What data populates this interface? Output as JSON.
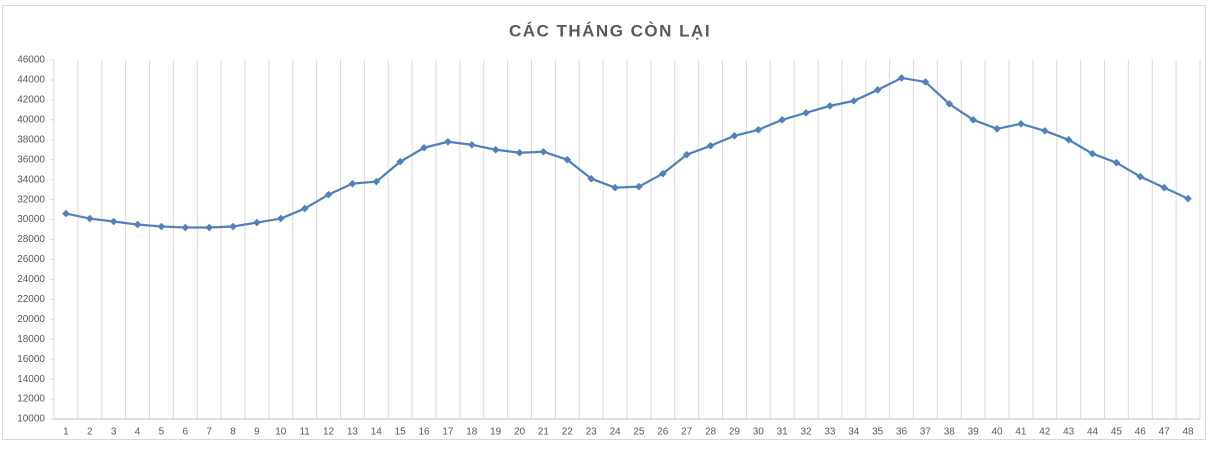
{
  "chart_data": {
    "type": "line",
    "title": "CÁC THÁNG CÒN LẠI",
    "categories": [
      "1",
      "2",
      "3",
      "4",
      "5",
      "6",
      "7",
      "8",
      "9",
      "10",
      "11",
      "12",
      "13",
      "14",
      "15",
      "16",
      "17",
      "18",
      "19",
      "20",
      "21",
      "22",
      "23",
      "24",
      "25",
      "26",
      "27",
      "28",
      "29",
      "30",
      "31",
      "32",
      "33",
      "34",
      "35",
      "36",
      "37",
      "38",
      "39",
      "40",
      "41",
      "42",
      "43",
      "44",
      "45",
      "46",
      "47",
      "48"
    ],
    "values": [
      30600,
      30100,
      29800,
      29500,
      29300,
      29200,
      29200,
      29300,
      29700,
      30100,
      31100,
      32500,
      33600,
      33800,
      35800,
      37200,
      37800,
      37500,
      37000,
      36700,
      36800,
      36000,
      34100,
      33200,
      33300,
      34600,
      36500,
      37400,
      38400,
      39000,
      40000,
      40700,
      41400,
      41900,
      43000,
      44200,
      43800,
      41600,
      40000,
      39100,
      39600,
      38900,
      38000,
      36600,
      35700,
      34300,
      33200,
      32100
    ],
    "color": "#4f81bd",
    "ylim": [
      10000,
      46000
    ],
    "yticks": [
      10000,
      12000,
      14000,
      16000,
      18000,
      20000,
      22000,
      24000,
      26000,
      28000,
      30000,
      32000,
      34000,
      36000,
      38000,
      40000,
      42000,
      44000,
      46000
    ],
    "category_grid": true
  }
}
